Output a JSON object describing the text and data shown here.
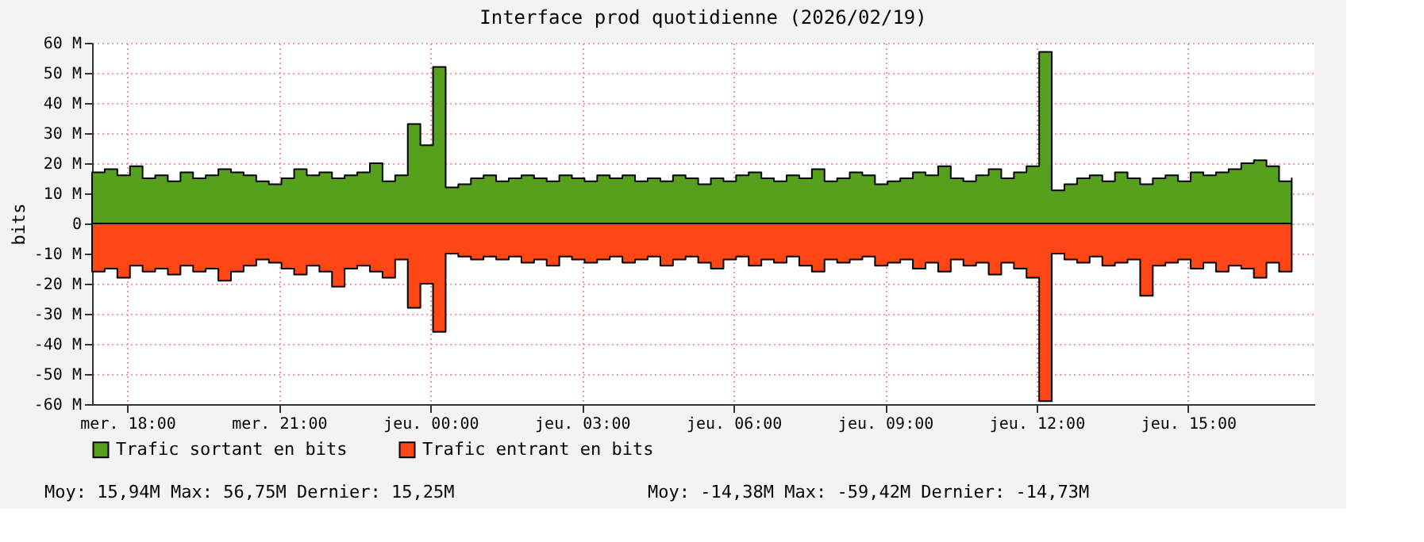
{
  "chart_data": {
    "type": "area",
    "title": "Interface prod quotidienne (2026/02/19)",
    "ylabel": "bits",
    "x": [
      "2026-02-18T17:18",
      "2026-02-18T17:33",
      "2026-02-18T17:48",
      "2026-02-18T18:03",
      "2026-02-18T18:18",
      "2026-02-18T18:33",
      "2026-02-18T18:48",
      "2026-02-18T19:03",
      "2026-02-18T19:18",
      "2026-02-18T19:33",
      "2026-02-18T19:48",
      "2026-02-18T20:03",
      "2026-02-18T20:18",
      "2026-02-18T20:33",
      "2026-02-18T20:48",
      "2026-02-18T21:03",
      "2026-02-18T21:18",
      "2026-02-18T21:33",
      "2026-02-18T21:48",
      "2026-02-18T22:03",
      "2026-02-18T22:18",
      "2026-02-18T22:33",
      "2026-02-18T22:48",
      "2026-02-18T23:03",
      "2026-02-18T23:18",
      "2026-02-18T23:33",
      "2026-02-18T23:48",
      "2026-02-19T00:03",
      "2026-02-19T00:18",
      "2026-02-19T00:33",
      "2026-02-19T00:48",
      "2026-02-19T01:03",
      "2026-02-19T01:18",
      "2026-02-19T01:33",
      "2026-02-19T01:48",
      "2026-02-19T02:03",
      "2026-02-19T02:18",
      "2026-02-19T02:33",
      "2026-02-19T02:48",
      "2026-02-19T03:03",
      "2026-02-19T03:18",
      "2026-02-19T03:33",
      "2026-02-19T03:48",
      "2026-02-19T04:03",
      "2026-02-19T04:18",
      "2026-02-19T04:33",
      "2026-02-19T04:48",
      "2026-02-19T05:03",
      "2026-02-19T05:18",
      "2026-02-19T05:33",
      "2026-02-19T05:48",
      "2026-02-19T06:03",
      "2026-02-19T06:18",
      "2026-02-19T06:33",
      "2026-02-19T06:48",
      "2026-02-19T07:03",
      "2026-02-19T07:18",
      "2026-02-19T07:33",
      "2026-02-19T07:48",
      "2026-02-19T08:03",
      "2026-02-19T08:18",
      "2026-02-19T08:33",
      "2026-02-19T08:48",
      "2026-02-19T09:03",
      "2026-02-19T09:18",
      "2026-02-19T09:33",
      "2026-02-19T09:48",
      "2026-02-19T10:03",
      "2026-02-19T10:18",
      "2026-02-19T10:33",
      "2026-02-19T10:48",
      "2026-02-19T11:03",
      "2026-02-19T11:18",
      "2026-02-19T11:33",
      "2026-02-19T11:48",
      "2026-02-19T12:03",
      "2026-02-19T12:18",
      "2026-02-19T12:33",
      "2026-02-19T12:48",
      "2026-02-19T13:03",
      "2026-02-19T13:18",
      "2026-02-19T13:33",
      "2026-02-19T13:48",
      "2026-02-19T14:03",
      "2026-02-19T14:18",
      "2026-02-19T14:33",
      "2026-02-19T14:48",
      "2026-02-19T15:03",
      "2026-02-19T15:18",
      "2026-02-19T15:33",
      "2026-02-19T15:48",
      "2026-02-19T16:03",
      "2026-02-19T16:18",
      "2026-02-19T16:33",
      "2026-02-19T16:48",
      "2026-02-19T17:03"
    ],
    "series": [
      {
        "name": "Trafic sortant en bits",
        "color": "#56a01e",
        "values": [
          17,
          18,
          16,
          19,
          15,
          16,
          14,
          17,
          15,
          16,
          18,
          17,
          16,
          14,
          13,
          15,
          18,
          16,
          17,
          15,
          16,
          17,
          20,
          14,
          16,
          33,
          26,
          52,
          12,
          13,
          15,
          16,
          14,
          15,
          16,
          15,
          14,
          16,
          15,
          14,
          16,
          15,
          16,
          14,
          15,
          14,
          16,
          15,
          13,
          15,
          14,
          16,
          17,
          15,
          14,
          16,
          15,
          18,
          14,
          15,
          17,
          16,
          13,
          14,
          15,
          17,
          16,
          19,
          15,
          14,
          16,
          18,
          15,
          17,
          19,
          57,
          11,
          13,
          15,
          16,
          14,
          17,
          15,
          13,
          15,
          16,
          14,
          17,
          16,
          17,
          18,
          20,
          21,
          19,
          14,
          15
        ]
      },
      {
        "name": "Trafic entrant en bits",
        "color": "#ff4614",
        "values": [
          -16,
          -15,
          -18,
          -14,
          -16,
          -15,
          -17,
          -14,
          -16,
          -15,
          -19,
          -16,
          -14,
          -12,
          -13,
          -15,
          -17,
          -14,
          -16,
          -21,
          -15,
          -14,
          -16,
          -18,
          -12,
          -28,
          -20,
          -36,
          -10,
          -11,
          -12,
          -11,
          -12,
          -11,
          -13,
          -12,
          -14,
          -11,
          -12,
          -13,
          -12,
          -11,
          -13,
          -12,
          -11,
          -14,
          -12,
          -11,
          -13,
          -15,
          -12,
          -11,
          -14,
          -12,
          -13,
          -11,
          -14,
          -16,
          -12,
          -13,
          -12,
          -11,
          -14,
          -13,
          -12,
          -15,
          -13,
          -16,
          -12,
          -14,
          -13,
          -17,
          -13,
          -15,
          -18,
          -59,
          -10,
          -12,
          -13,
          -11,
          -14,
          -13,
          -12,
          -24,
          -14,
          -13,
          -12,
          -15,
          -13,
          -16,
          -14,
          -15,
          -18,
          -13,
          -16,
          -15
        ]
      }
    ],
    "annotations": [
      "Moy: 15,94M  Max: 56,75M  Dernier: 15,25M",
      "Moy: -14,38M  Max: -59,42M  Dernier: -14,73M"
    ],
    "xlim": [
      "2026-02-18T17:18",
      "2026-02-19T17:30"
    ],
    "xticks": [
      {
        "value": "2026-02-18T18:00",
        "label": "mer. 18:00"
      },
      {
        "value": "2026-02-18T21:00",
        "label": "mer. 21:00"
      },
      {
        "value": "2026-02-19T00:00",
        "label": "jeu. 00:00"
      },
      {
        "value": "2026-02-19T03:00",
        "label": "jeu. 03:00"
      },
      {
        "value": "2026-02-19T06:00",
        "label": "jeu. 06:00"
      },
      {
        "value": "2026-02-19T09:00",
        "label": "jeu. 09:00"
      },
      {
        "value": "2026-02-19T12:00",
        "label": "jeu. 12:00"
      },
      {
        "value": "2026-02-19T15:00",
        "label": "jeu. 15:00"
      }
    ],
    "ylim": [
      -60,
      60
    ],
    "yticks": [
      {
        "value": -60,
        "label": "-60 M"
      },
      {
        "value": -50,
        "label": "-50 M"
      },
      {
        "value": -40,
        "label": "-40 M"
      },
      {
        "value": -30,
        "label": "-30 M"
      },
      {
        "value": -20,
        "label": "-20 M"
      },
      {
        "value": -10,
        "label": "-10 M"
      },
      0,
      {
        "value": 10,
        "label": "10 M"
      },
      {
        "value": 20,
        "label": "20 M"
      },
      {
        "value": 30,
        "label": "30 M"
      },
      {
        "value": 40,
        "label": "40 M"
      },
      {
        "value": 50,
        "label": "50 M"
      },
      {
        "value": 60,
        "label": "60 M"
      }
    ],
    "grid": true,
    "legend": "bottom"
  }
}
